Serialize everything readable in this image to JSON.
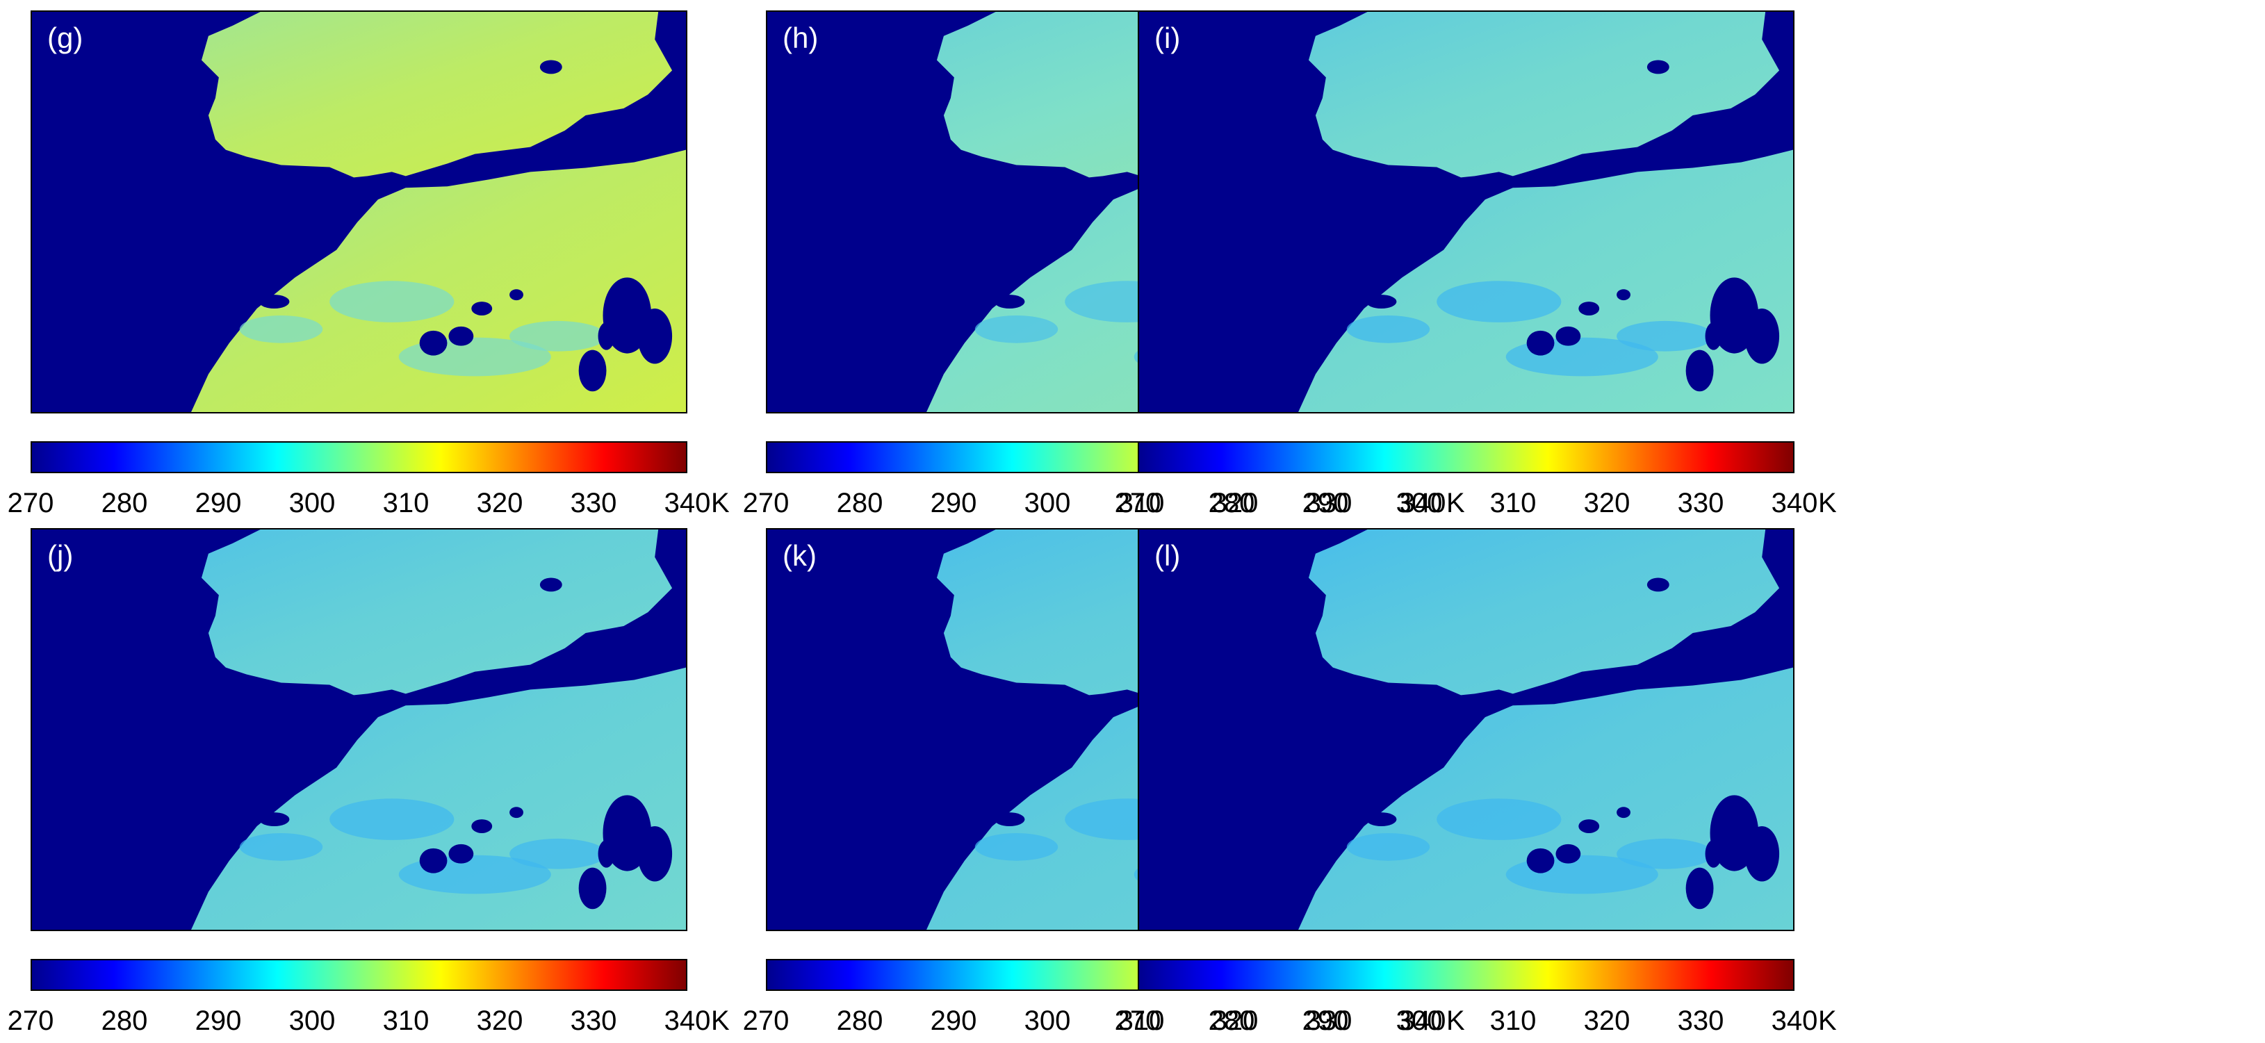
{
  "panels": [
    {
      "label": "(g)",
      "warmth": 0.8
    },
    {
      "label": "(h)",
      "warmth": 0.45
    },
    {
      "label": "(i)",
      "warmth": 0.35
    },
    {
      "label": "(j)",
      "warmth": 0.25
    },
    {
      "label": "(k)",
      "warmth": 0.2
    },
    {
      "label": "(l)",
      "warmth": 0.18
    }
  ],
  "colorbar": {
    "ticks": [
      "270",
      "280",
      "290",
      "300",
      "310",
      "320",
      "330",
      "340"
    ],
    "unit": "K",
    "range": [
      270,
      340
    ],
    "colormap": "jet"
  },
  "colors": {
    "water": "#00008c",
    "cool_land": "#3fb8f0",
    "mid_land": "#7fe0c8",
    "warm_land": "#d8ef3a"
  }
}
